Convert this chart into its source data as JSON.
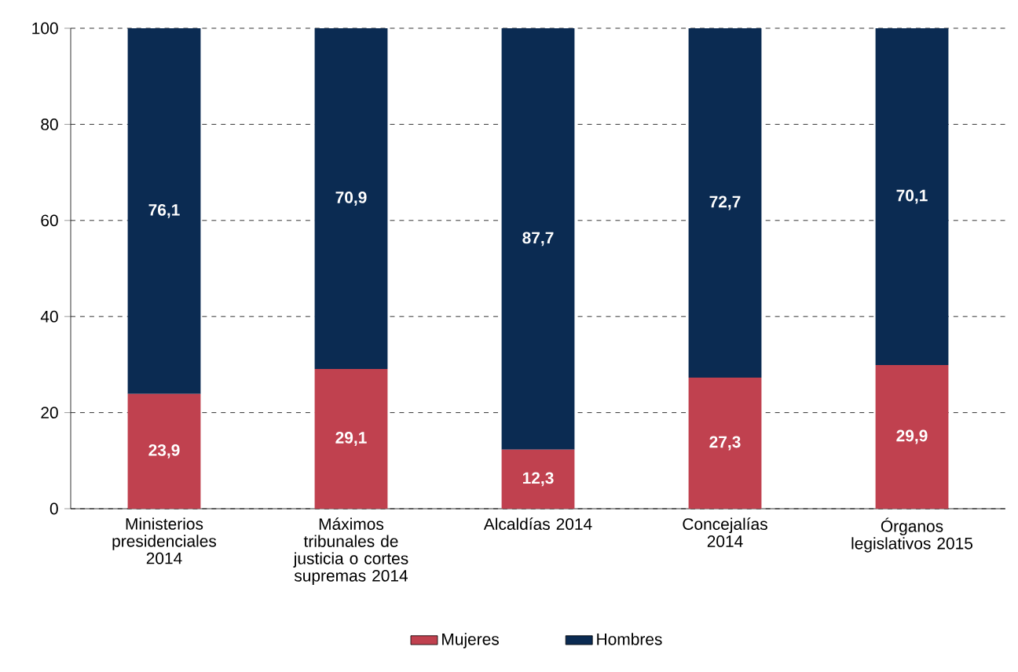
{
  "chart_data": {
    "type": "bar",
    "stacked": true,
    "categories": [
      "Ministerios presidenciales 2014",
      "Máximos tribunales de justicia o cortes supremas 2014",
      "Alcaldías 2014",
      "Concejalías 2014",
      "Órganos legislativos 2015"
    ],
    "series": [
      {
        "name": "Mujeres",
        "color": "#c0414f",
        "values": [
          23.9,
          29.1,
          12.3,
          27.3,
          29.9
        ],
        "value_labels": [
          "23,9",
          "29,1",
          "12,3",
          "27,3",
          "29,9"
        ]
      },
      {
        "name": "Hombres",
        "color": "#0b2b52",
        "values": [
          76.1,
          70.9,
          87.7,
          72.7,
          70.1
        ],
        "value_labels": [
          "76,1",
          "70,9",
          "87,7",
          "72,7",
          "70,1"
        ]
      }
    ],
    "ylim": [
      0,
      100
    ],
    "yticks": [
      0,
      20,
      40,
      60,
      80,
      100
    ],
    "grid": "y",
    "legend": "bottom"
  }
}
